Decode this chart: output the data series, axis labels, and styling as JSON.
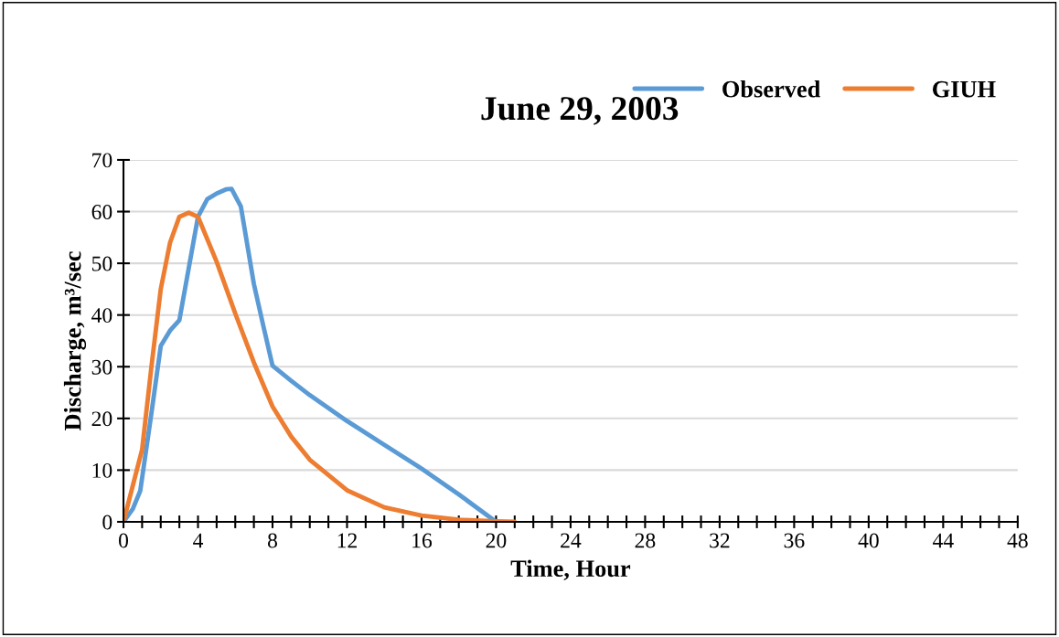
{
  "chart_data": {
    "type": "line",
    "title": "June 29, 2003",
    "xlabel": "Time, Hour",
    "ylabel": "Discharge, m³/sec",
    "series": [
      {
        "name": "Observed",
        "color": "#5b9bd5",
        "x": [
          0,
          0.5,
          0.9,
          1.5,
          2,
          2.5,
          3,
          3.5,
          4,
          4.5,
          5,
          5.5,
          5.8,
          6.3,
          7,
          7.5,
          8,
          9,
          10,
          12,
          14,
          16,
          18,
          20
        ],
        "values": [
          0,
          2.5,
          6,
          21,
          34,
          37,
          39,
          49,
          59,
          62.4,
          63.5,
          64.3,
          64.4,
          61,
          46,
          38,
          30.2,
          27.3,
          24.5,
          19.5,
          14.9,
          10.3,
          5.3,
          0
        ]
      },
      {
        "name": "GIUH",
        "color": "#ed7d31",
        "x": [
          0,
          0.5,
          1,
          1.5,
          2,
          2.5,
          3,
          3.5,
          4,
          5,
          6,
          7,
          8,
          9,
          10,
          12,
          14,
          16,
          18,
          20,
          21
        ],
        "values": [
          0,
          7,
          14,
          30,
          45,
          54,
          59,
          59.8,
          59,
          50.3,
          40.3,
          30.8,
          22.3,
          16.5,
          12,
          6.1,
          2.8,
          1.2,
          0.4,
          0.1,
          0
        ]
      }
    ],
    "xlim": [
      0,
      48
    ],
    "ylim": [
      0,
      70
    ],
    "xticks": [
      0,
      {
        "value": 1,
        "label": null
      },
      {
        "value": 2,
        "label": null
      },
      {
        "value": 3,
        "label": null
      },
      4,
      {
        "value": 5,
        "label": null
      },
      {
        "value": 6,
        "label": null
      },
      {
        "value": 7,
        "label": null
      },
      8,
      {
        "value": 9,
        "label": null
      },
      {
        "value": 10,
        "label": null
      },
      {
        "value": 11,
        "label": null
      },
      12,
      {
        "value": 13,
        "label": null
      },
      {
        "value": 14,
        "label": null
      },
      {
        "value": 15,
        "label": null
      },
      16,
      {
        "value": 17,
        "label": null
      },
      {
        "value": 18,
        "label": null
      },
      {
        "value": 19,
        "label": null
      },
      20,
      {
        "value": 21,
        "label": null
      },
      {
        "value": 22,
        "label": null
      },
      {
        "value": 23,
        "label": null
      },
      24,
      {
        "value": 25,
        "label": null
      },
      {
        "value": 26,
        "label": null
      },
      {
        "value": 27,
        "label": null
      },
      28,
      {
        "value": 29,
        "label": null
      },
      {
        "value": 30,
        "label": null
      },
      {
        "value": 31,
        "label": null
      },
      32,
      {
        "value": 33,
        "label": null
      },
      {
        "value": 34,
        "label": null
      },
      {
        "value": 35,
        "label": null
      },
      36,
      {
        "value": 37,
        "label": null
      },
      {
        "value": 38,
        "label": null
      },
      {
        "value": 39,
        "label": null
      },
      40,
      {
        "value": 41,
        "label": null
      },
      {
        "value": 42,
        "label": null
      },
      {
        "value": 43,
        "label": null
      },
      44,
      {
        "value": 45,
        "label": null
      },
      {
        "value": 46,
        "label": null
      },
      {
        "value": 47,
        "label": null
      },
      48
    ],
    "yticks": [
      0,
      10,
      20,
      30,
      40,
      50,
      60,
      70
    ],
    "grid": "y",
    "legend": "top right",
    "marker": "none",
    "line_style": "solid"
  }
}
